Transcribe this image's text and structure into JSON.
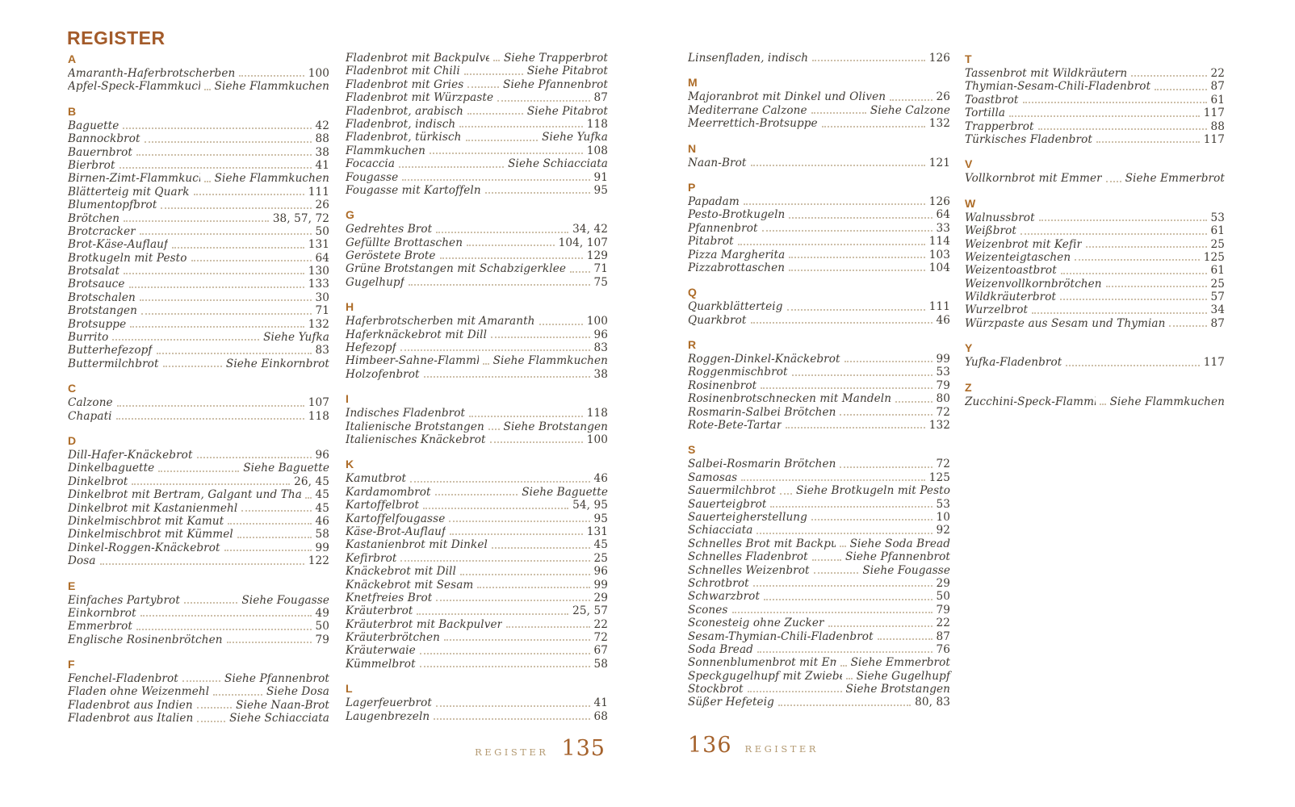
{
  "title": "REGISTER",
  "footer_left": {
    "label": "REGISTER",
    "page": "135"
  },
  "footer_right": {
    "label": "REGISTER",
    "page": "136"
  },
  "columns": [
    {
      "groups": [
        {
          "letter": "A",
          "entries": [
            {
              "n": "Amaranth-Haferbrotscherben",
              "p": "100"
            },
            {
              "n": "Apfel-Speck-Flammkuchen",
              "p": "Siehe Flammkuchen",
              "ref": true
            }
          ]
        },
        {
          "letter": "B",
          "entries": [
            {
              "n": "Baguette",
              "p": "42"
            },
            {
              "n": "Bannockbrot",
              "p": "88"
            },
            {
              "n": "Bauernbrot",
              "p": "38"
            },
            {
              "n": "Bierbrot",
              "p": "41"
            },
            {
              "n": "Birnen-Zimt-Flammkuchen",
              "p": "Siehe Flammkuchen",
              "ref": true
            },
            {
              "n": "Blätterteig mit Quark",
              "p": "111"
            },
            {
              "n": "Blumentopfbrot",
              "p": "26"
            },
            {
              "n": "Brötchen",
              "p": "38, 57, 72"
            },
            {
              "n": "Brotcracker",
              "p": "50"
            },
            {
              "n": "Brot-Käse-Auflauf",
              "p": "131"
            },
            {
              "n": "Brotkugeln mit Pesto",
              "p": "64"
            },
            {
              "n": "Brotsalat",
              "p": "130"
            },
            {
              "n": "Brotsauce",
              "p": "133"
            },
            {
              "n": "Brotschalen",
              "p": "30"
            },
            {
              "n": "Brotstangen",
              "p": "71"
            },
            {
              "n": "Brotsuppe",
              "p": "132"
            },
            {
              "n": "Burrito",
              "p": "Siehe Yufka",
              "ref": true
            },
            {
              "n": "Butterhefezopf",
              "p": "83"
            },
            {
              "n": "Buttermilchbrot",
              "p": "Siehe Einkornbrot",
              "ref": true
            }
          ]
        },
        {
          "letter": "C",
          "entries": [
            {
              "n": "Calzone",
              "p": "107"
            },
            {
              "n": "Chapati",
              "p": "118"
            }
          ]
        },
        {
          "letter": "D",
          "entries": [
            {
              "n": "Dill-Hafer-Knäckebrot",
              "p": "96"
            },
            {
              "n": "Dinkelbaguette",
              "p": "Siehe Baguette",
              "ref": true
            },
            {
              "n": "Dinkelbrot",
              "p": "26, 45"
            },
            {
              "n": "Dinkelbrot mit Bertram, Galgant und Thai-Ingwer",
              "p": "45"
            },
            {
              "n": "Dinkelbrot mit Kastanienmehl",
              "p": "45"
            },
            {
              "n": "Dinkelmischbrot mit Kamut",
              "p": "46"
            },
            {
              "n": "Dinkelmischbrot mit Kümmel",
              "p": "58"
            },
            {
              "n": "Dinkel-Roggen-Knäckebrot",
              "p": "99"
            },
            {
              "n": "Dosa",
              "p": "122"
            }
          ]
        },
        {
          "letter": "E",
          "entries": [
            {
              "n": "Einfaches Partybrot",
              "p": "Siehe Fougasse",
              "ref": true
            },
            {
              "n": "Einkornbrot",
              "p": "49"
            },
            {
              "n": "Emmerbrot",
              "p": "50"
            },
            {
              "n": "Englische Rosinenbrötchen",
              "p": "79"
            }
          ]
        },
        {
          "letter": "F",
          "entries": [
            {
              "n": "Fenchel-Fladenbrot",
              "p": "Siehe Pfannenbrot",
              "ref": true
            },
            {
              "n": "Fladen ohne Weizenmehl",
              "p": "Siehe Dosa",
              "ref": true
            },
            {
              "n": "Fladenbrot aus Indien",
              "p": "Siehe Naan-Brot",
              "ref": true
            },
            {
              "n": "Fladenbrot aus Italien",
              "p": "Siehe Schiacciata",
              "ref": true
            }
          ]
        }
      ]
    },
    {
      "groups": [
        {
          "letter": "",
          "entries": [
            {
              "n": "Fladenbrot mit Backpulver",
              "p": "Siehe Trapperbrot",
              "ref": true
            },
            {
              "n": "Fladenbrot mit Chili",
              "p": "Siehe Pitabrot",
              "ref": true
            },
            {
              "n": "Fladenbrot mit Gries",
              "p": "Siehe Pfannenbrot",
              "ref": true
            },
            {
              "n": "Fladenbrot mit Würzpaste",
              "p": "87"
            },
            {
              "n": "Fladenbrot, arabisch",
              "p": "Siehe Pitabrot",
              "ref": true
            },
            {
              "n": "Fladenbrot, indisch",
              "p": "118"
            },
            {
              "n": "Fladenbrot, türkisch",
              "p": "Siehe Yufka",
              "ref": true
            },
            {
              "n": "Flammkuchen",
              "p": "108"
            },
            {
              "n": "Focaccia",
              "p": "Siehe Schiacciata",
              "ref": true
            },
            {
              "n": "Fougasse",
              "p": "91"
            },
            {
              "n": "Fougasse mit Kartoffeln",
              "p": "95"
            }
          ]
        },
        {
          "letter": "G",
          "entries": [
            {
              "n": "Gedrehtes Brot",
              "p": "34, 42"
            },
            {
              "n": "Gefüllte Brottaschen",
              "p": "104, 107"
            },
            {
              "n": "Geröstete Brote",
              "p": "129"
            },
            {
              "n": "Grüne Brotstangen mit Schabzigerklee",
              "p": "71"
            },
            {
              "n": "Gugelhupf",
              "p": "75"
            }
          ]
        },
        {
          "letter": "H",
          "entries": [
            {
              "n": "Haferbrotscherben mit Amaranth",
              "p": "100"
            },
            {
              "n": "Haferknäckebrot mit Dill",
              "p": "96"
            },
            {
              "n": "Hefezopf",
              "p": "83"
            },
            {
              "n": "Himbeer-Sahne-Flammkuchen",
              "p": "Siehe Flammkuchen",
              "ref": true
            },
            {
              "n": "Holzofenbrot",
              "p": "38"
            }
          ]
        },
        {
          "letter": "I",
          "entries": [
            {
              "n": "Indisches Fladenbrot",
              "p": "118"
            },
            {
              "n": "Italienische Brotstangen",
              "p": "Siehe Brotstangen",
              "ref": true
            },
            {
              "n": "Italienisches Knäckebrot",
              "p": "100"
            }
          ]
        },
        {
          "letter": "K",
          "entries": [
            {
              "n": "Kamutbrot",
              "p": "46"
            },
            {
              "n": "Kardamombrot",
              "p": "Siehe Baguette",
              "ref": true
            },
            {
              "n": "Kartoffelbrot",
              "p": "54, 95"
            },
            {
              "n": "Kartoffelfougasse",
              "p": "95"
            },
            {
              "n": "Käse-Brot-Auflauf",
              "p": "131"
            },
            {
              "n": "Kastanienbrot mit Dinkel",
              "p": "45"
            },
            {
              "n": "Kefirbrot",
              "p": "25"
            },
            {
              "n": "Knäckebrot mit Dill",
              "p": "96"
            },
            {
              "n": "Knäckebrot mit Sesam",
              "p": "99"
            },
            {
              "n": "Knetfreies Brot",
              "p": "29"
            },
            {
              "n": "Kräuterbrot",
              "p": "25, 57"
            },
            {
              "n": "Kräuterbrot mit Backpulver",
              "p": "22"
            },
            {
              "n": "Kräuterbrötchen",
              "p": "72"
            },
            {
              "n": "Kräuterwaie",
              "p": "67"
            },
            {
              "n": "Kümmelbrot",
              "p": "58"
            }
          ]
        },
        {
          "letter": "L",
          "entries": [
            {
              "n": "Lagerfeuerbrot",
              "p": "41"
            },
            {
              "n": "Laugenbrezeln",
              "p": "68"
            }
          ]
        }
      ]
    },
    {
      "groups": [
        {
          "letter": "",
          "entries": [
            {
              "n": "Linsenfladen, indisch",
              "p": "126"
            }
          ]
        },
        {
          "letter": "M",
          "entries": [
            {
              "n": "Majoranbrot mit Dinkel und Oliven",
              "p": "26"
            },
            {
              "n": "Mediterrane Calzone",
              "p": "Siehe Calzone",
              "ref": true
            },
            {
              "n": "Meerrettich-Brotsuppe",
              "p": "132"
            }
          ]
        },
        {
          "letter": "N",
          "entries": [
            {
              "n": "Naan-Brot",
              "p": "121"
            }
          ]
        },
        {
          "letter": "P",
          "entries": [
            {
              "n": "Papadam",
              "p": "126"
            },
            {
              "n": "Pesto-Brotkugeln",
              "p": "64"
            },
            {
              "n": "Pfannenbrot",
              "p": "33"
            },
            {
              "n": "Pitabrot",
              "p": "114"
            },
            {
              "n": "Pizza Margherita",
              "p": "103"
            },
            {
              "n": "Pizzabrottaschen",
              "p": "104"
            }
          ]
        },
        {
          "letter": "Q",
          "entries": [
            {
              "n": "Quarkblätterteig",
              "p": "111"
            },
            {
              "n": "Quarkbrot",
              "p": "46"
            }
          ]
        },
        {
          "letter": "R",
          "entries": [
            {
              "n": "Roggen-Dinkel-Knäckebrot",
              "p": "99"
            },
            {
              "n": "Roggenmischbrot",
              "p": "53"
            },
            {
              "n": "Rosinenbrot",
              "p": "79"
            },
            {
              "n": "Rosinenbrotschnecken mit Mandeln",
              "p": "80"
            },
            {
              "n": "Rosmarin-Salbei Brötchen",
              "p": "72"
            },
            {
              "n": "Rote-Bete-Tartar",
              "p": "132"
            }
          ]
        },
        {
          "letter": "S",
          "entries": [
            {
              "n": "Salbei-Rosmarin Brötchen",
              "p": "72"
            },
            {
              "n": "Samosas",
              "p": "125"
            },
            {
              "n": "Sauermilchbrot",
              "p": "Siehe Brotkugeln mit Pesto",
              "ref": true
            },
            {
              "n": "Sauerteigbrot",
              "p": "53"
            },
            {
              "n": "Sauerteigherstellung",
              "p": "10"
            },
            {
              "n": "Schiacciata",
              "p": "92"
            },
            {
              "n": "Schnelles Brot mit Backpulver",
              "p": "Siehe Soda Bread",
              "ref": true
            },
            {
              "n": "Schnelles Fladenbrot",
              "p": "Siehe Pfannenbrot",
              "ref": true
            },
            {
              "n": "Schnelles Weizenbrot",
              "p": "Siehe Fougasse",
              "ref": true
            },
            {
              "n": "Schrotbrot",
              "p": "29"
            },
            {
              "n": "Schwarzbrot",
              "p": "50"
            },
            {
              "n": "Scones",
              "p": "79"
            },
            {
              "n": "Sconesteig ohne Zucker",
              "p": "22"
            },
            {
              "n": "Sesam-Thymian-Chili-Fladenbrot",
              "p": "87"
            },
            {
              "n": "Soda Bread",
              "p": "76"
            },
            {
              "n": "Sonnenblumenbrot mit Emmer",
              "p": "Siehe Emmerbrot",
              "ref": true
            },
            {
              "n": "Speckgugelhupf mit Zwiebeln",
              "p": "Siehe Gugelhupf",
              "ref": true
            },
            {
              "n": "Stockbrot",
              "p": "Siehe Brotstangen",
              "ref": true
            },
            {
              "n": "Süßer Hefeteig",
              "p": "80, 83"
            }
          ]
        }
      ]
    },
    {
      "groups": [
        {
          "letter": "T",
          "entries": [
            {
              "n": "Tassenbrot mit Wildkräutern",
              "p": "22"
            },
            {
              "n": "Thymian-Sesam-Chili-Fladenbrot",
              "p": "87"
            },
            {
              "n": "Toastbrot",
              "p": "61"
            },
            {
              "n": "Tortilla",
              "p": "117"
            },
            {
              "n": "Trapperbrot",
              "p": "88"
            },
            {
              "n": "Türkisches Fladenbrot",
              "p": "117"
            }
          ]
        },
        {
          "letter": "V",
          "entries": [
            {
              "n": "Vollkornbrot mit Emmer",
              "p": "Siehe Emmerbrot",
              "ref": true
            }
          ]
        },
        {
          "letter": "W",
          "entries": [
            {
              "n": "Walnussbrot",
              "p": "53"
            },
            {
              "n": "Weißbrot",
              "p": "61"
            },
            {
              "n": "Weizenbrot mit Kefir",
              "p": "25"
            },
            {
              "n": "Weizenteigtaschen",
              "p": "125"
            },
            {
              "n": "Weizentoastbrot",
              "p": "61"
            },
            {
              "n": "Weizenvollkornbrötchen",
              "p": "25"
            },
            {
              "n": "Wildkräuterbrot",
              "p": "57"
            },
            {
              "n": "Wurzelbrot",
              "p": "34"
            },
            {
              "n": "Würzpaste aus Sesam und Thymian",
              "p": "87"
            }
          ]
        },
        {
          "letter": "Y",
          "entries": [
            {
              "n": "Yufka-Fladenbrot",
              "p": "117"
            }
          ]
        },
        {
          "letter": "Z",
          "entries": [
            {
              "n": "Zucchini-Speck-Flammkuchen",
              "p": "Siehe Flammkuchen",
              "ref": true
            }
          ]
        }
      ]
    }
  ]
}
